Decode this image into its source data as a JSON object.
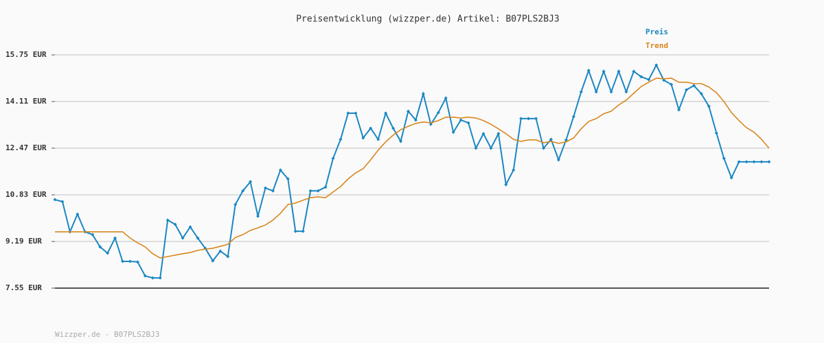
{
  "chart_data": {
    "type": "line",
    "title": "Preisentwicklung (wizzper.de) Artikel: B07PLS2BJ3",
    "footer": "Wizzper.de - B07PLS2BJ3",
    "ylim": [
      7.55,
      15.75
    ],
    "yticks": [
      {
        "value": 7.55,
        "label": "7.55 EUR"
      },
      {
        "value": 9.19,
        "label": "9.19 EUR"
      },
      {
        "value": 10.83,
        "label": "10.83 EUR"
      },
      {
        "value": 12.47,
        "label": "12.47 EUR"
      },
      {
        "value": 14.11,
        "label": "14.11 EUR"
      },
      {
        "value": 15.75,
        "label": "15.75 EUR"
      }
    ],
    "grid": true,
    "series": [
      {
        "name": "Preis",
        "color": "#1a87c3",
        "markers": true,
        "values": [
          10.66,
          10.59,
          9.53,
          10.15,
          9.53,
          9.43,
          9.0,
          8.78,
          9.31,
          8.49,
          8.49,
          8.47,
          7.98,
          7.91,
          7.91,
          9.94,
          9.79,
          9.31,
          9.7,
          9.31,
          8.95,
          8.51,
          8.85,
          8.66,
          10.49,
          10.97,
          11.29,
          10.08,
          11.07,
          10.97,
          11.7,
          11.39,
          9.55,
          9.55,
          10.97,
          10.97,
          11.1,
          12.11,
          12.78,
          13.7,
          13.7,
          12.83,
          13.17,
          12.78,
          13.7,
          13.17,
          12.71,
          13.77,
          13.46,
          14.38,
          13.31,
          13.72,
          14.23,
          13.03,
          13.46,
          13.36,
          12.47,
          12.98,
          12.47,
          12.98,
          11.19,
          11.7,
          13.51,
          13.51,
          13.51,
          12.47,
          12.78,
          12.06,
          12.76,
          13.58,
          14.45,
          15.2,
          14.45,
          15.17,
          14.45,
          15.17,
          14.45,
          15.17,
          14.98,
          14.88,
          15.39,
          14.86,
          14.71,
          13.82,
          14.52,
          14.67,
          14.38,
          13.94,
          13.0,
          12.11,
          11.43,
          11.99,
          11.99,
          11.99,
          11.99,
          11.99
        ]
      },
      {
        "name": "Trend",
        "color": "#d8871f",
        "markers": false,
        "values": [
          9.53,
          9.53,
          9.53,
          9.53,
          9.53,
          9.53,
          9.53,
          9.53,
          9.53,
          9.53,
          9.31,
          9.14,
          9.0,
          8.76,
          8.61,
          8.66,
          8.71,
          8.76,
          8.8,
          8.88,
          8.92,
          8.95,
          9.02,
          9.09,
          9.33,
          9.43,
          9.58,
          9.67,
          9.77,
          9.94,
          10.18,
          10.49,
          10.54,
          10.64,
          10.73,
          10.76,
          10.73,
          10.93,
          11.12,
          11.39,
          11.6,
          11.75,
          12.06,
          12.4,
          12.69,
          12.93,
          13.12,
          13.24,
          13.34,
          13.39,
          13.36,
          13.44,
          13.56,
          13.56,
          13.53,
          13.56,
          13.53,
          13.44,
          13.31,
          13.15,
          12.98,
          12.78,
          12.71,
          12.76,
          12.76,
          12.66,
          12.71,
          12.64,
          12.69,
          12.83,
          13.15,
          13.41,
          13.51,
          13.68,
          13.77,
          13.99,
          14.16,
          14.4,
          14.64,
          14.79,
          14.93,
          14.91,
          14.93,
          14.79,
          14.79,
          14.74,
          14.74,
          14.62,
          14.42,
          14.11,
          13.72,
          13.44,
          13.19,
          13.03,
          12.78,
          12.47
        ]
      }
    ]
  }
}
